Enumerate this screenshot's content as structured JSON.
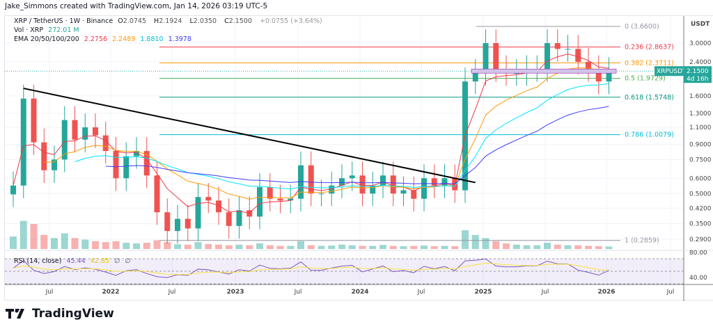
{
  "credit": "Jake_Simmons created with TradingView.com, Jan 14, 2026 03:19 UTC-5",
  "legend": {
    "symbol": "XRP / TetherUS · 1W · Binance",
    "o_label": "O",
    "o": "2.0745",
    "h_label": "H",
    "h": "2.1924",
    "l_label": "L",
    "l": "2.0350",
    "c_label": "C",
    "c": "2.1500",
    "change": "+0.0755 (+3.64%)",
    "vol_label": "Vol · XRP",
    "vol": "272.01 M",
    "ema_label": "EMA 20/50/100/200",
    "ema20": "2.2756",
    "ema50": "2.2489",
    "ema100": "1.8810",
    "ema200": "1.3978",
    "rsi_label": "RSI (14, close)",
    "rsi": "45.44",
    "rsi_ma": "42.85",
    "rsi_x1": "∅",
    "rsi_x2": "∅"
  },
  "colors": {
    "up": "#26a69a",
    "down": "#ef5350",
    "ema20": "#f23645",
    "ema50": "#ff9800",
    "ema100": "#00e5ff",
    "ema200": "#3d3dff",
    "rsi": "#7e57c2",
    "rsi_ma": "#f7e43b",
    "price_tag": "#26a69a"
  },
  "price_axis": {
    "currency": "USDT",
    "ticks": [
      "3.0000",
      "2.4000",
      "1.6000",
      "1.3000",
      "1.1000",
      "0.9000",
      "0.7500",
      "0.6000",
      "0.5000",
      "0.4200",
      "0.3500",
      "0.2900"
    ],
    "scale": "log"
  },
  "rsi_axis": {
    "ticks": [
      "80.00",
      "40.00"
    ]
  },
  "time_axis": [
    "Jul",
    "2022",
    "Jul",
    "2023",
    "Jul",
    "2024",
    "Jul",
    "2025",
    "Jul",
    "2026",
    "Jul"
  ],
  "price_tag": {
    "symbol": "XRPUSDT",
    "price": "2.1500",
    "countdown": "4d 16h"
  },
  "fib_levels": [
    {
      "label": "0 (3.6600)",
      "value": 3.66,
      "color": "#9598a1"
    },
    {
      "label": "0.236 (2.8637)",
      "value": 2.8637,
      "color": "#f23645"
    },
    {
      "label": "0.382 (2.3711)",
      "value": 2.3711,
      "color": "#ff9800"
    },
    {
      "label": "0.5 (1.9729)",
      "value": 1.9729,
      "color": "#4caf50"
    },
    {
      "label": "0.618 (1.5748)",
      "value": 1.5748,
      "color": "#089981"
    },
    {
      "label": "0.786 (1.0079)",
      "value": 1.0079,
      "color": "#00bcd4"
    },
    {
      "label": "1 (0.2859)",
      "value": 0.2859,
      "color": "#9598a1"
    }
  ],
  "chart_data": {
    "type": "candlestick",
    "start": "2021-03",
    "interval": "month",
    "closes": [
      0.55,
      1.55,
      0.92,
      0.66,
      0.75,
      1.2,
      0.95,
      1.1,
      1.0,
      0.83,
      0.6,
      0.78,
      0.83,
      0.62,
      0.4,
      0.32,
      0.37,
      0.33,
      0.48,
      0.46,
      0.4,
      0.34,
      0.41,
      0.38,
      0.54,
      0.47,
      0.46,
      0.47,
      0.7,
      0.5,
      0.5,
      0.55,
      0.6,
      0.62,
      0.5,
      0.55,
      0.62,
      0.5,
      0.52,
      0.47,
      0.6,
      0.55,
      0.6,
      0.52,
      1.9,
      2.1,
      3.0,
      2.2,
      2.1,
      2.1,
      2.2,
      2.2,
      3.0,
      2.8,
      2.8,
      2.4,
      2.2,
      1.9,
      2.15
    ],
    "volumes": [
      40,
      90,
      80,
      45,
      35,
      50,
      35,
      30,
      25,
      22,
      25,
      20,
      18,
      20,
      28,
      22,
      15,
      14,
      22,
      16,
      14,
      12,
      14,
      12,
      18,
      12,
      10,
      10,
      25,
      12,
      10,
      11,
      14,
      12,
      10,
      10,
      13,
      10,
      9,
      10,
      11,
      9,
      10,
      9,
      60,
      45,
      35,
      25,
      18,
      14,
      12,
      12,
      20,
      14,
      12,
      12,
      10,
      9,
      8
    ],
    "trendline": {
      "from": {
        "date": "2021-04",
        "price": 1.75
      },
      "to": {
        "date": "2024-12",
        "price": 0.57
      }
    },
    "xrange": [
      "2021-03",
      "2026-09"
    ]
  }
}
